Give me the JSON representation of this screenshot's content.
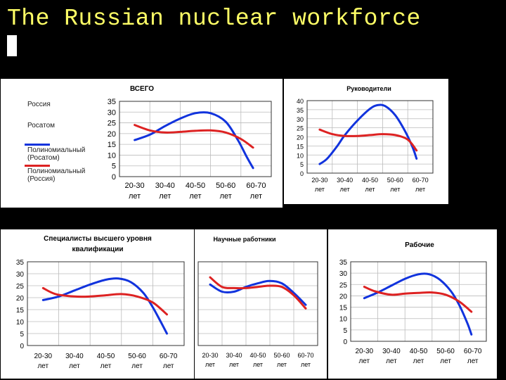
{
  "slide": {
    "title": "The Russian nuclear workforce"
  },
  "colors": {
    "rosatom": "#1133dd",
    "russia": "#dd2222",
    "title": "#ffff66"
  },
  "legend": [
    {
      "label": "Россия"
    },
    {
      "label": "Росатом"
    },
    {
      "label": "Полиномиальный (Росатом)",
      "color": "#1133dd"
    },
    {
      "label": "Полиномиальный (Россия)",
      "color": "#dd2222"
    }
  ],
  "chart_data": [
    {
      "type": "line",
      "title": "ВСЕГО",
      "categories": [
        [
          "20-30",
          "лет"
        ],
        [
          "30-40",
          "лет"
        ],
        [
          "40-50",
          "лет"
        ],
        [
          "50-60",
          "лет"
        ],
        [
          "60-70",
          "лет"
        ]
      ],
      "ylim": [
        0,
        35
      ],
      "yticks": [
        "0",
        "5",
        "10",
        "15",
        "20",
        "25",
        "30",
        "35"
      ],
      "grid": true,
      "legend_position": "left",
      "series": [
        {
          "name": "Полиномиальный (Росатом)",
          "color": "#1133dd",
          "points": [
            [
              0,
              17
            ],
            [
              0.5,
              19.5
            ],
            [
              1,
              23.5
            ],
            [
              1.5,
              27
            ],
            [
              2,
              29.5
            ],
            [
              2.5,
              29.5
            ],
            [
              3,
              25.5
            ],
            [
              3.4,
              17
            ],
            [
              3.7,
              9
            ],
            [
              3.9,
              4
            ]
          ]
        },
        {
          "name": "Полиномиальный (Россия)",
          "color": "#dd2222",
          "points": [
            [
              0,
              24
            ],
            [
              0.5,
              21.5
            ],
            [
              1,
              20.5
            ],
            [
              1.5,
              20.8
            ],
            [
              2,
              21.3
            ],
            [
              2.5,
              21.5
            ],
            [
              3,
              20.5
            ],
            [
              3.5,
              17.5
            ],
            [
              3.9,
              13.5
            ]
          ]
        }
      ]
    },
    {
      "type": "line",
      "title": "Руководители",
      "categories": [
        [
          "20-30",
          "лет"
        ],
        [
          "30-40",
          "лет"
        ],
        [
          "40-50",
          "лет"
        ],
        [
          "50-60",
          "лет"
        ],
        [
          "60-70",
          "лет"
        ]
      ],
      "ylim": [
        0,
        40
      ],
      "yticks": [
        "0",
        "5",
        "10",
        "15",
        "20",
        "25",
        "30",
        "35",
        "40"
      ],
      "grid": true,
      "series": [
        {
          "color": "#1133dd",
          "points": [
            [
              0,
              5
            ],
            [
              0.3,
              8
            ],
            [
              0.7,
              15
            ],
            [
              1,
              21
            ],
            [
              1.5,
              29
            ],
            [
              2,
              35.5
            ],
            [
              2.3,
              37.5
            ],
            [
              2.6,
              37
            ],
            [
              3,
              32
            ],
            [
              3.4,
              23
            ],
            [
              3.7,
              14
            ],
            [
              3.85,
              8
            ]
          ]
        },
        {
          "color": "#dd2222",
          "points": [
            [
              0,
              24
            ],
            [
              0.5,
              21.5
            ],
            [
              1,
              20.5
            ],
            [
              1.5,
              20.5
            ],
            [
              2,
              21
            ],
            [
              2.5,
              21.5
            ],
            [
              3,
              21
            ],
            [
              3.5,
              18.5
            ],
            [
              3.85,
              12.5
            ]
          ]
        }
      ]
    },
    {
      "type": "line",
      "title": "Специалисты высшего уровня квалификации",
      "categories": [
        [
          "20-30",
          "лет"
        ],
        [
          "30-40",
          "лет"
        ],
        [
          "40-50",
          "лет"
        ],
        [
          "50-60",
          "лет"
        ],
        [
          "60-70",
          "лет"
        ]
      ],
      "ylim": [
        0,
        35
      ],
      "yticks": [
        "0",
        "5",
        "10",
        "15",
        "20",
        "25",
        "30",
        "35"
      ],
      "grid": true,
      "series": [
        {
          "color": "#1133dd",
          "points": [
            [
              0,
              19
            ],
            [
              0.5,
              20.5
            ],
            [
              1,
              23
            ],
            [
              1.5,
              25.5
            ],
            [
              2,
              27.5
            ],
            [
              2.4,
              28
            ],
            [
              2.8,
              26.5
            ],
            [
              3.2,
              22
            ],
            [
              3.5,
              16
            ],
            [
              3.75,
              10
            ],
            [
              3.95,
              5
            ]
          ]
        },
        {
          "color": "#dd2222",
          "points": [
            [
              0,
              24
            ],
            [
              0.4,
              21.5
            ],
            [
              1,
              20.5
            ],
            [
              1.5,
              20.5
            ],
            [
              2,
              21
            ],
            [
              2.5,
              21.5
            ],
            [
              3,
              20.5
            ],
            [
              3.5,
              18
            ],
            [
              3.95,
              13
            ]
          ]
        }
      ]
    },
    {
      "type": "line",
      "title": "Научные работники",
      "categories": [
        [
          "20-30",
          "лет"
        ],
        [
          "30-40",
          "лет"
        ],
        [
          "40-50",
          "лет"
        ],
        [
          "50-60",
          "лет"
        ],
        [
          "60-70",
          "лет"
        ]
      ],
      "ylim": [
        0,
        35
      ],
      "grid": true,
      "series": [
        {
          "color": "#1133dd",
          "points": [
            [
              0,
              25.5
            ],
            [
              0.5,
              22.5
            ],
            [
              1,
              22.5
            ],
            [
              1.5,
              24.5
            ],
            [
              2,
              26
            ],
            [
              2.5,
              27
            ],
            [
              3,
              26
            ],
            [
              3.5,
              22
            ],
            [
              4,
              17
            ]
          ]
        },
        {
          "color": "#dd2222",
          "points": [
            [
              0,
              28.5
            ],
            [
              0.5,
              24.5
            ],
            [
              1,
              24
            ],
            [
              1.5,
              24
            ],
            [
              2,
              24.5
            ],
            [
              2.5,
              25
            ],
            [
              3,
              24.5
            ],
            [
              3.5,
              21
            ],
            [
              4,
              15.5
            ]
          ]
        }
      ]
    },
    {
      "type": "line",
      "title": "Рабочие",
      "categories": [
        [
          "20-30",
          "лет"
        ],
        [
          "30-40",
          "лет"
        ],
        [
          "40-50",
          "лет"
        ],
        [
          "50-60",
          "лет"
        ],
        [
          "60-70",
          "лет"
        ]
      ],
      "ylim": [
        0,
        35
      ],
      "yticks": [
        "0",
        "5",
        "10",
        "15",
        "20",
        "25",
        "30",
        "35"
      ],
      "grid": true,
      "series": [
        {
          "color": "#1133dd",
          "points": [
            [
              0,
              19
            ],
            [
              0.5,
              21.5
            ],
            [
              1,
              24.5
            ],
            [
              1.5,
              27.5
            ],
            [
              2,
              29.5
            ],
            [
              2.4,
              29.5
            ],
            [
              2.8,
              27
            ],
            [
              3.2,
              22
            ],
            [
              3.5,
              16
            ],
            [
              3.8,
              8
            ],
            [
              3.95,
              3
            ]
          ]
        },
        {
          "color": "#dd2222",
          "points": [
            [
              0,
              24
            ],
            [
              0.4,
              22
            ],
            [
              1,
              20.5
            ],
            [
              1.5,
              21
            ],
            [
              2,
              21.3
            ],
            [
              2.5,
              21.5
            ],
            [
              3,
              20.5
            ],
            [
              3.5,
              17.5
            ],
            [
              3.95,
              13
            ]
          ]
        }
      ]
    }
  ]
}
